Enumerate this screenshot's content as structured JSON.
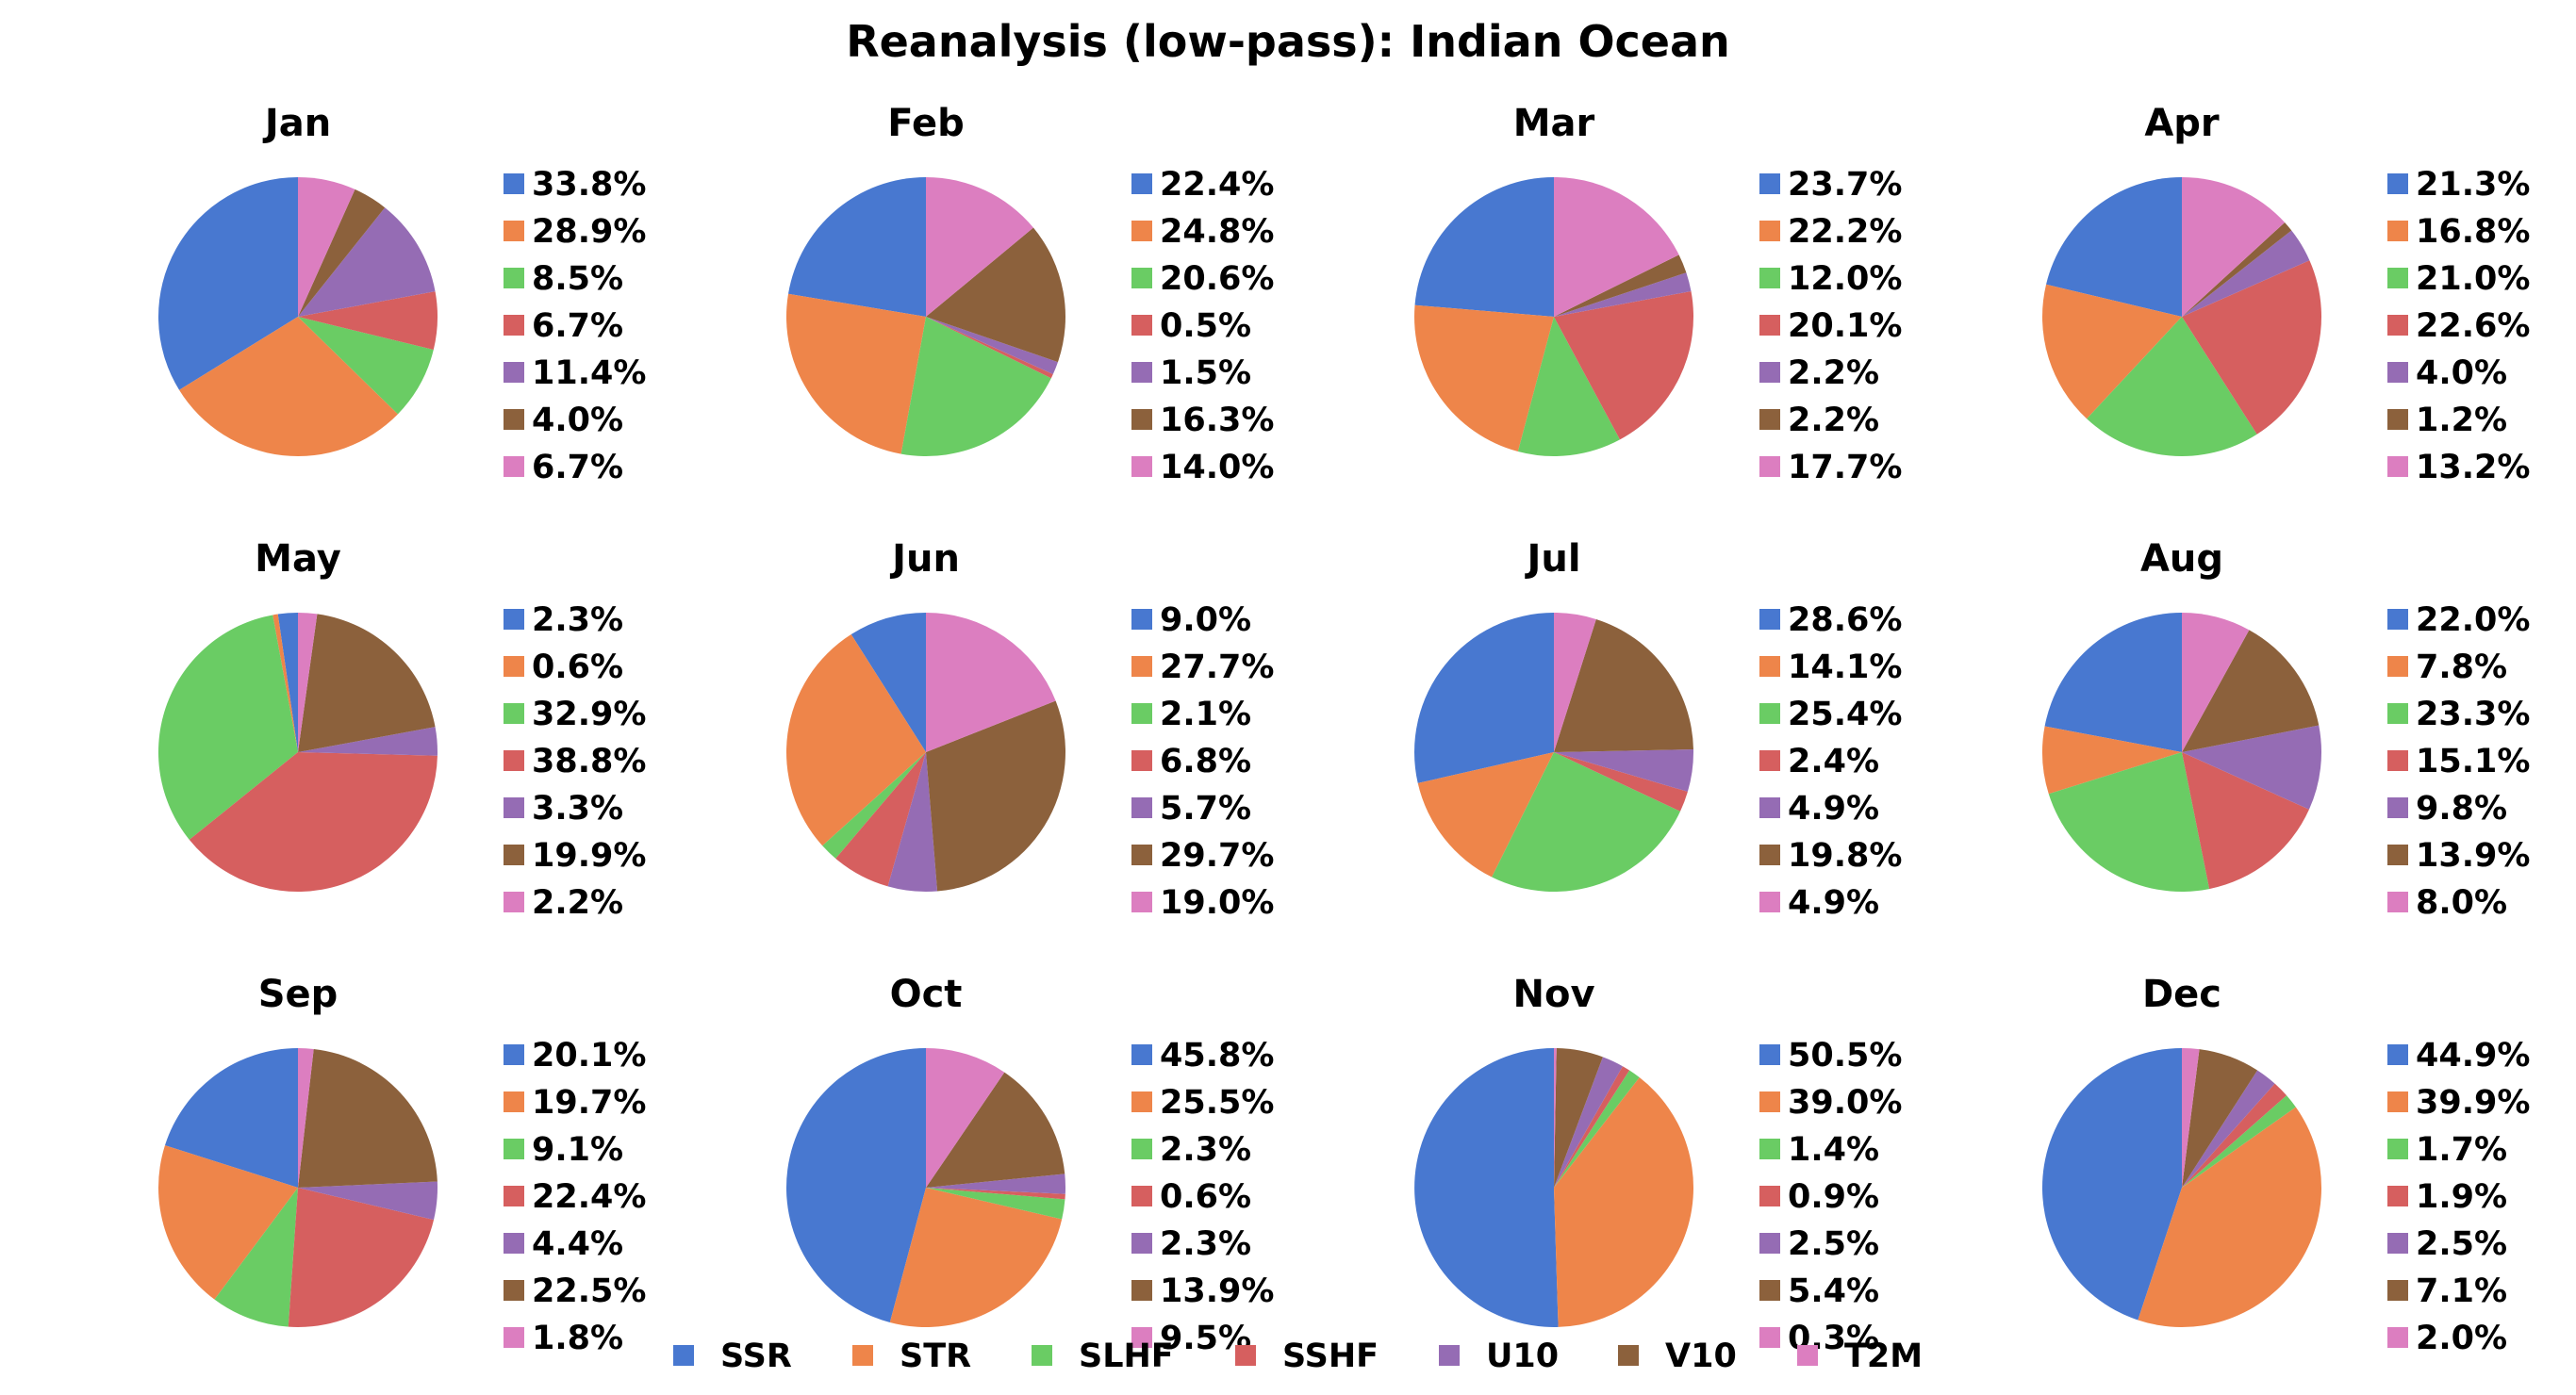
{
  "title": "Reanalysis (low-pass): Indian Ocean",
  "colors": {
    "SSR": "#4878d0",
    "STR": "#ee854a",
    "SLHF": "#6acc64",
    "SSHF": "#d65f5f",
    "U10": "#956cb4",
    "V10": "#8c613c",
    "T2M": "#dc7ec0"
  },
  "legend": {
    "labels": [
      "SSR",
      "STR",
      "SLHF",
      "SSHF",
      "U10",
      "V10",
      "T2M"
    ]
  },
  "chart_data": {
    "type": "pie",
    "title": "Reanalysis (low-pass): Indian Ocean",
    "series_names": [
      "SSR",
      "STR",
      "SLHF",
      "SSHF",
      "U10",
      "V10",
      "T2M"
    ],
    "start_angle": "top, counterclockwise",
    "legend_placement": "bottom",
    "charts": [
      {
        "title": "Jan",
        "values": [
          33.8,
          28.9,
          8.5,
          6.7,
          11.4,
          4.0,
          6.7
        ],
        "labels": [
          "33.8%",
          "28.9%",
          "8.5%",
          "6.7%",
          "11.4%",
          "4.0%",
          "6.7%"
        ]
      },
      {
        "title": "Feb",
        "values": [
          22.4,
          24.8,
          20.6,
          0.5,
          1.5,
          16.3,
          14.0
        ],
        "labels": [
          "22.4%",
          "24.8%",
          "20.6%",
          "0.5%",
          "1.5%",
          "16.3%",
          "14.0%"
        ]
      },
      {
        "title": "Mar",
        "values": [
          23.7,
          22.2,
          12.0,
          20.1,
          2.2,
          2.2,
          17.7
        ],
        "labels": [
          "23.7%",
          "22.2%",
          "12.0%",
          "20.1%",
          "2.2%",
          "2.2%",
          "17.7%"
        ]
      },
      {
        "title": "Apr",
        "values": [
          21.3,
          16.8,
          21.0,
          22.6,
          4.0,
          1.2,
          13.2
        ],
        "labels": [
          "21.3%",
          "16.8%",
          "21.0%",
          "22.6%",
          "4.0%",
          "1.2%",
          "13.2%"
        ]
      },
      {
        "title": "May",
        "values": [
          2.3,
          0.6,
          32.9,
          38.8,
          3.3,
          19.9,
          2.2
        ],
        "labels": [
          "2.3%",
          "0.6%",
          "32.9%",
          "38.8%",
          "3.3%",
          "19.9%",
          "2.2%"
        ]
      },
      {
        "title": "Jun",
        "values": [
          9.0,
          27.7,
          2.1,
          6.8,
          5.7,
          29.7,
          19.0
        ],
        "labels": [
          "9.0%",
          "27.7%",
          "2.1%",
          "6.8%",
          "5.7%",
          "29.7%",
          "19.0%"
        ]
      },
      {
        "title": "Jul",
        "values": [
          28.6,
          14.1,
          25.4,
          2.4,
          4.9,
          19.8,
          4.9
        ],
        "labels": [
          "28.6%",
          "14.1%",
          "25.4%",
          "2.4%",
          "4.9%",
          "19.8%",
          "4.9%"
        ]
      },
      {
        "title": "Aug",
        "values": [
          22.0,
          7.8,
          23.3,
          15.1,
          9.8,
          13.9,
          8.0
        ],
        "labels": [
          "22.0%",
          "7.8%",
          "23.3%",
          "15.1%",
          "9.8%",
          "13.9%",
          "8.0%"
        ]
      },
      {
        "title": "Sep",
        "values": [
          20.1,
          19.7,
          9.1,
          22.4,
          4.4,
          22.5,
          1.8
        ],
        "labels": [
          "20.1%",
          "19.7%",
          "9.1%",
          "22.4%",
          "4.4%",
          "22.5%",
          "1.8%"
        ]
      },
      {
        "title": "Oct",
        "values": [
          45.8,
          25.5,
          2.3,
          0.6,
          2.3,
          13.9,
          9.5
        ],
        "labels": [
          "45.8%",
          "25.5%",
          "2.3%",
          "0.6%",
          "2.3%",
          "13.9%",
          "9.5%"
        ]
      },
      {
        "title": "Nov",
        "values": [
          50.5,
          39.0,
          1.4,
          0.9,
          2.5,
          5.4,
          0.3
        ],
        "labels": [
          "50.5%",
          "39.0%",
          "1.4%",
          "0.9%",
          "2.5%",
          "5.4%",
          "0.3%"
        ]
      },
      {
        "title": "Dec",
        "values": [
          44.9,
          39.9,
          1.7,
          1.9,
          2.5,
          7.1,
          2.0
        ],
        "labels": [
          "44.9%",
          "39.9%",
          "1.7%",
          "1.9%",
          "2.5%",
          "7.1%",
          "2.0%"
        ]
      }
    ]
  }
}
